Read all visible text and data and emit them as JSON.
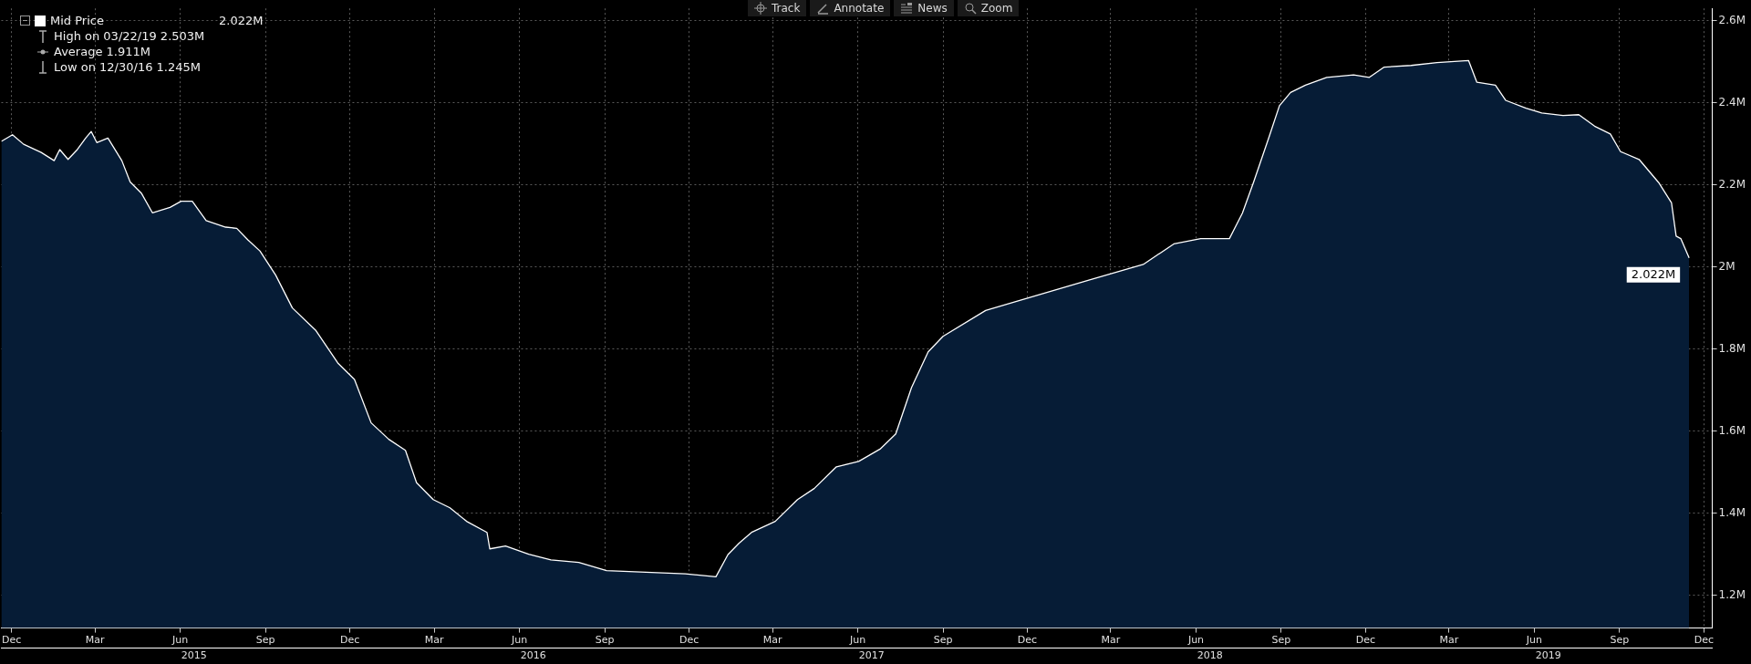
{
  "chart_data": {
    "type": "area",
    "x": [
      "2014-11-20",
      "2014-12-02",
      "2014-12-14",
      "2015-01-02",
      "2015-01-16",
      "2015-01-22",
      "2015-01-31",
      "2015-02-10",
      "2015-02-19",
      "2015-02-25",
      "2015-03-03",
      "2015-03-15",
      "2015-03-30",
      "2015-04-08",
      "2015-04-20",
      "2015-05-02",
      "2015-05-21",
      "2015-06-02",
      "2015-06-14",
      "2015-06-29",
      "2015-07-20",
      "2015-08-01",
      "2015-08-13",
      "2015-08-26",
      "2015-09-12",
      "2015-09-30",
      "2015-10-25",
      "2015-11-18",
      "2015-12-06",
      "2015-12-24",
      "2016-01-12",
      "2016-01-30",
      "2016-02-11",
      "2016-02-29",
      "2016-03-18",
      "2016-04-05",
      "2016-04-27",
      "2016-04-30",
      "2016-05-17",
      "2016-06-11",
      "2016-07-05",
      "2016-08-04",
      "2016-09-03",
      "2016-11-27",
      "2016-12-30",
      "2017-01-12",
      "2017-01-24",
      "2017-02-07",
      "2017-03-04",
      "2017-03-28",
      "2017-04-15",
      "2017-05-09",
      "2017-06-02",
      "2017-06-25",
      "2017-07-12",
      "2017-07-29",
      "2017-08-16",
      "2017-09-01",
      "2017-10-17",
      "2017-12-12",
      "2018-02-07",
      "2018-04-05",
      "2018-05-08",
      "2018-06-06",
      "2018-07-07",
      "2018-07-21",
      "2018-08-02",
      "2018-08-19",
      "2018-08-30",
      "2018-09-11",
      "2018-09-27",
      "2018-10-20",
      "2018-11-18",
      "2018-12-05",
      "2018-12-21",
      "2019-01-19",
      "2019-02-16",
      "2019-03-22",
      "2019-03-31",
      "2019-04-20",
      "2019-05-01",
      "2019-05-23",
      "2019-06-09",
      "2019-07-02",
      "2019-07-19",
      "2019-08-05",
      "2019-08-22",
      "2019-09-02",
      "2019-09-22",
      "2019-10-13",
      "2019-10-27",
      "2019-11-01",
      "2019-11-06",
      "2019-11-15"
    ],
    "series": [
      {
        "name": "Mid Price",
        "color": "#ffffff",
        "values": [
          2.306,
          2.322,
          2.299,
          2.279,
          2.259,
          2.286,
          2.262,
          2.286,
          2.314,
          2.33,
          2.303,
          2.314,
          2.259,
          2.207,
          2.18,
          2.132,
          2.145,
          2.16,
          2.16,
          2.113,
          2.097,
          2.094,
          2.066,
          2.039,
          1.98,
          1.9,
          1.846,
          1.766,
          1.726,
          1.62,
          1.58,
          1.553,
          1.474,
          1.433,
          1.413,
          1.38,
          1.353,
          1.313,
          1.32,
          1.3,
          1.286,
          1.28,
          1.26,
          1.252,
          1.245,
          1.299,
          1.327,
          1.354,
          1.38,
          1.433,
          1.46,
          1.513,
          1.526,
          1.556,
          1.593,
          1.706,
          1.793,
          1.831,
          1.894,
          1.931,
          1.969,
          2.006,
          2.056,
          2.069,
          2.069,
          2.131,
          2.206,
          2.318,
          2.393,
          2.425,
          2.443,
          2.462,
          2.468,
          2.462,
          2.487,
          2.491,
          2.498,
          2.503,
          2.45,
          2.443,
          2.406,
          2.387,
          2.375,
          2.369,
          2.371,
          2.343,
          2.324,
          2.281,
          2.262,
          2.206,
          2.156,
          2.075,
          2.069,
          2.022
        ],
        "value_labels": [
          null,
          null,
          null,
          null,
          null,
          null,
          null,
          null,
          null,
          null,
          null,
          null,
          null,
          null,
          null,
          null,
          null,
          null,
          null,
          null,
          null,
          null,
          null,
          null,
          null,
          null,
          null,
          null,
          null,
          null,
          null,
          null,
          null,
          null,
          null,
          null,
          null,
          null,
          null,
          null,
          null,
          null,
          null,
          null,
          null,
          null,
          null,
          null,
          null,
          null,
          null,
          null,
          null,
          null,
          null,
          null,
          null,
          null,
          null,
          null,
          null,
          null,
          null,
          null,
          null,
          null,
          null,
          null,
          null,
          null,
          null,
          null,
          null,
          null,
          null,
          null,
          null,
          null,
          null,
          null,
          null,
          null,
          null,
          null,
          null,
          null,
          null,
          null,
          null,
          null,
          null,
          null,
          null,
          "2.022M"
        ]
      }
    ],
    "xlim": [
      "2014-11-20",
      "2019-12-10"
    ],
    "xticks": [
      {
        "value": "2014-12-01",
        "label": "Dec"
      },
      {
        "value": "2015-03-01",
        "label": "Mar"
      },
      {
        "value": "2015-06-01",
        "label": "Jun"
      },
      {
        "value": "2015-09-01",
        "label": "Sep"
      },
      {
        "value": "2015-12-01",
        "label": "Dec"
      },
      {
        "value": "2016-03-01",
        "label": "Mar"
      },
      {
        "value": "2016-06-01",
        "label": "Jun"
      },
      {
        "value": "2016-09-01",
        "label": "Sep"
      },
      {
        "value": "2016-12-01",
        "label": "Dec"
      },
      {
        "value": "2017-03-01",
        "label": "Mar"
      },
      {
        "value": "2017-06-01",
        "label": "Jun"
      },
      {
        "value": "2017-09-01",
        "label": "Sep"
      },
      {
        "value": "2017-12-01",
        "label": "Dec"
      },
      {
        "value": "2018-03-01",
        "label": "Mar"
      },
      {
        "value": "2018-06-01",
        "label": "Jun"
      },
      {
        "value": "2018-09-01",
        "label": "Sep"
      },
      {
        "value": "2018-12-01",
        "label": "Dec"
      },
      {
        "value": "2019-03-01",
        "label": "Mar"
      },
      {
        "value": "2019-06-01",
        "label": "Jun"
      },
      {
        "value": "2019-09-01",
        "label": "Sep"
      },
      {
        "value": "2019-12-01",
        "label": "Dec"
      }
    ],
    "x2lim": [
      "2014-11-20",
      "2019-12-10"
    ],
    "x2ticks": [
      {
        "value": "2015-06-16",
        "label": "2015"
      },
      {
        "value": "2016-06-16",
        "label": "2016"
      },
      {
        "value": "2017-06-16",
        "label": "2017"
      },
      {
        "value": "2018-06-16",
        "label": "2018"
      },
      {
        "value": "2019-06-16",
        "label": "2019"
      }
    ],
    "ylim": [
      1.12,
      2.63
    ],
    "yticks": [
      {
        "value": 1.2,
        "label": "1.2M"
      },
      {
        "value": 1.4,
        "label": "1.4M"
      },
      {
        "value": 1.6,
        "label": "1.6M"
      },
      {
        "value": 1.8,
        "label": "1.8M"
      },
      {
        "value": 2,
        "label": "2M"
      },
      {
        "value": 2.2,
        "label": "2.2M"
      },
      {
        "value": 2.4,
        "label": "2.4M"
      },
      {
        "value": 2.6,
        "label": "2.6M"
      }
    ],
    "grid": true,
    "legend": "top left",
    "annotations": [
      "High on 03/22/19 2.503M",
      "Average 1.911M",
      "Low on 12/30/16 1.245M",
      "Track",
      "Annotate",
      "News",
      "Zoom"
    ]
  }
}
